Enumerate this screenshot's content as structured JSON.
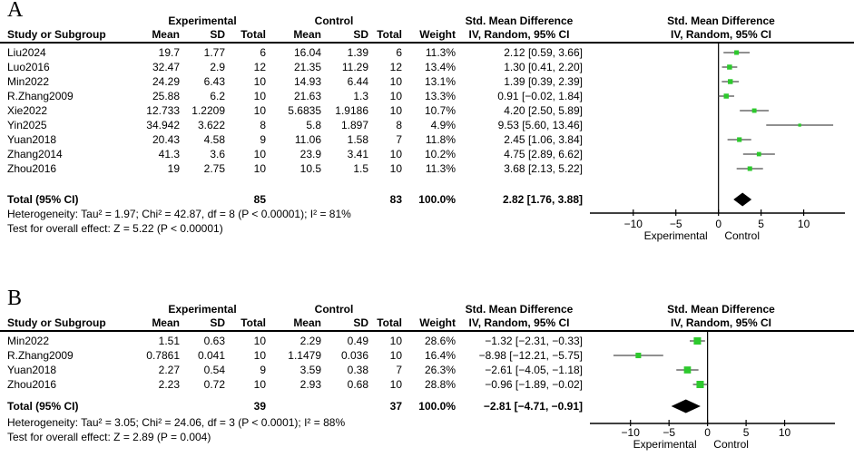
{
  "colors": {
    "marker_green": "#2DC92D",
    "ci_line": "#4d4d4d",
    "axis_black": "#000000",
    "diamond_black": "#000000"
  },
  "panels": [
    {
      "label": "A",
      "group_headers": {
        "experimental": "Experimental",
        "control": "Control",
        "smd_left": "Std. Mean Difference"
      },
      "plot_headers": {
        "line1": "Std. Mean Difference",
        "line2": "IV, Random, 95% CI"
      },
      "col_headers": {
        "study": "Study or Subgroup",
        "mean": "Mean",
        "sd": "SD",
        "total": "Total",
        "mean2": "Mean",
        "sd2": "SD",
        "total2": "Total",
        "weight": "Weight",
        "ci": "IV, Random, 95% CI"
      },
      "studies": [
        {
          "name": "Liu2024",
          "exp_mean": "19.7",
          "exp_sd": "1.77",
          "exp_total": "6",
          "ctl_mean": "16.04",
          "ctl_sd": "1.39",
          "ctl_total": "6",
          "weight": "11.3%",
          "ci_text": "2.12 [0.59, 3.66]"
        },
        {
          "name": "Luo2016",
          "exp_mean": "32.47",
          "exp_sd": "2.9",
          "exp_total": "12",
          "ctl_mean": "21.35",
          "ctl_sd": "11.29",
          "ctl_total": "12",
          "weight": "13.4%",
          "ci_text": "1.30 [0.41, 2.20]"
        },
        {
          "name": "Min2022",
          "exp_mean": "24.29",
          "exp_sd": "6.43",
          "exp_total": "10",
          "ctl_mean": "14.93",
          "ctl_sd": "6.44",
          "ctl_total": "10",
          "weight": "13.1%",
          "ci_text": "1.39 [0.39, 2.39]"
        },
        {
          "name": "R.Zhang2009",
          "exp_mean": "25.88",
          "exp_sd": "6.2",
          "exp_total": "10",
          "ctl_mean": "21.63",
          "ctl_sd": "1.3",
          "ctl_total": "10",
          "weight": "13.3%",
          "ci_text": "0.91 [−0.02, 1.84]"
        },
        {
          "name": "Xie2022",
          "exp_mean": "12.733",
          "exp_sd": "1.2209",
          "exp_total": "10",
          "ctl_mean": "5.6835",
          "ctl_sd": "1.9186",
          "ctl_total": "10",
          "weight": "10.7%",
          "ci_text": "4.20 [2.50, 5.89]"
        },
        {
          "name": "Yin2025",
          "exp_mean": "34.942",
          "exp_sd": "3.622",
          "exp_total": "8",
          "ctl_mean": "5.8",
          "ctl_sd": "1.897",
          "ctl_total": "8",
          "weight": "4.9%",
          "ci_text": "9.53 [5.60, 13.46]"
        },
        {
          "name": "Yuan2018",
          "exp_mean": "20.43",
          "exp_sd": "4.58",
          "exp_total": "9",
          "ctl_mean": "11.06",
          "ctl_sd": "1.58",
          "ctl_total": "7",
          "weight": "11.8%",
          "ci_text": "2.45 [1.06, 3.84]"
        },
        {
          "name": "Zhang2014",
          "exp_mean": "41.3",
          "exp_sd": "3.6",
          "exp_total": "10",
          "ctl_mean": "23.9",
          "ctl_sd": "3.41",
          "ctl_total": "10",
          "weight": "10.2%",
          "ci_text": "4.75 [2.89, 6.62]"
        },
        {
          "name": "Zhou2016",
          "exp_mean": "19",
          "exp_sd": "2.75",
          "exp_total": "10",
          "ctl_mean": "10.5",
          "ctl_sd": "1.5",
          "ctl_total": "10",
          "weight": "11.3%",
          "ci_text": "3.68 [2.13, 5.22]"
        }
      ],
      "total_row": {
        "label": "Total (95% CI)",
        "exp_total": "85",
        "ctl_total": "83",
        "weight": "100.0%",
        "ci_text": "2.82 [1.76, 3.88]"
      },
      "footnotes": {
        "heterogeneity": "Heterogeneity: Tau² = 1.97; Chi² = 42.87, df = 8 (P < 0.00001); I² = 81%",
        "overall": "Test for overall effect: Z = 5.22 (P < 0.00001)"
      }
    },
    {
      "label": "B",
      "group_headers": {
        "experimental": "Experimental",
        "control": "Control",
        "smd_left": "Std. Mean Difference"
      },
      "plot_headers": {
        "line1": "Std. Mean Difference",
        "line2": "IV, Random, 95% CI"
      },
      "col_headers": {
        "study": "Study or Subgroup",
        "mean": "Mean",
        "sd": "SD",
        "total": "Total",
        "mean2": "Mean",
        "sd2": "SD",
        "total2": "Total",
        "weight": "Weight",
        "ci": "IV, Random, 95% CI"
      },
      "studies": [
        {
          "name": "Min2022",
          "exp_mean": "1.51",
          "exp_sd": "0.63",
          "exp_total": "10",
          "ctl_mean": "2.29",
          "ctl_sd": "0.49",
          "ctl_total": "10",
          "weight": "28.6%",
          "ci_text": "−1.32 [−2.31, −0.33]"
        },
        {
          "name": "R.Zhang2009",
          "exp_mean": "0.7861",
          "exp_sd": "0.041",
          "exp_total": "10",
          "ctl_mean": "1.1479",
          "ctl_sd": "0.036",
          "ctl_total": "10",
          "weight": "16.4%",
          "ci_text": "−8.98 [−12.21, −5.75]"
        },
        {
          "name": "Yuan2018",
          "exp_mean": "2.27",
          "exp_sd": "0.54",
          "exp_total": "9",
          "ctl_mean": "3.59",
          "ctl_sd": "0.38",
          "ctl_total": "7",
          "weight": "26.3%",
          "ci_text": "−2.61 [−4.05, −1.18]"
        },
        {
          "name": "Zhou2016",
          "exp_mean": "2.23",
          "exp_sd": "0.72",
          "exp_total": "10",
          "ctl_mean": "2.93",
          "ctl_sd": "0.68",
          "ctl_total": "10",
          "weight": "28.8%",
          "ci_text": "−0.96 [−1.89, −0.02]"
        }
      ],
      "total_row": {
        "label": "Total (95% CI)",
        "exp_total": "39",
        "ctl_total": "37",
        "weight": "100.0%",
        "ci_text": "−2.81 [−4.71, −0.91]"
      },
      "footnotes": {
        "heterogeneity": "Heterogeneity: Tau² = 3.05; Chi² = 24.06, df = 3 (P < 0.0001); I² = 88%",
        "overall": "Test for overall effect: Z = 2.89 (P = 0.004)"
      }
    }
  ],
  "chart_data": [
    {
      "type": "scatter",
      "subtype": "forest_plot",
      "panel": "A",
      "title": "Std. Mean Difference, IV, Random, 95% CI",
      "studies": [
        {
          "name": "Liu2024",
          "smd": 2.12,
          "lo": 0.59,
          "hi": 3.66,
          "weight_pct": 11.3
        },
        {
          "name": "Luo2016",
          "smd": 1.3,
          "lo": 0.41,
          "hi": 2.2,
          "weight_pct": 13.4
        },
        {
          "name": "Min2022",
          "smd": 1.39,
          "lo": 0.39,
          "hi": 2.39,
          "weight_pct": 13.1
        },
        {
          "name": "R.Zhang2009",
          "smd": 0.91,
          "lo": -0.02,
          "hi": 1.84,
          "weight_pct": 13.3
        },
        {
          "name": "Xie2022",
          "smd": 4.2,
          "lo": 2.5,
          "hi": 5.89,
          "weight_pct": 10.7
        },
        {
          "name": "Yin2025",
          "smd": 9.53,
          "lo": 5.6,
          "hi": 13.46,
          "weight_pct": 4.9
        },
        {
          "name": "Yuan2018",
          "smd": 2.45,
          "lo": 1.06,
          "hi": 3.84,
          "weight_pct": 11.8
        },
        {
          "name": "Zhang2014",
          "smd": 4.75,
          "lo": 2.89,
          "hi": 6.62,
          "weight_pct": 10.2
        },
        {
          "name": "Zhou2016",
          "smd": 3.68,
          "lo": 2.13,
          "hi": 5.22,
          "weight_pct": 11.3
        }
      ],
      "total": {
        "smd": 2.82,
        "lo": 1.76,
        "hi": 3.88
      },
      "xlim": [
        -15.3,
        15.9
      ],
      "ticks": [
        -10,
        -5,
        0,
        5,
        10
      ],
      "tick_labels": [
        "−10",
        "−5",
        "0",
        "5",
        "10"
      ],
      "below_axis_labels": {
        "left": "Experimental",
        "right": "Control"
      }
    },
    {
      "type": "scatter",
      "subtype": "forest_plot",
      "panel": "B",
      "title": "Std. Mean Difference, IV, Random, 95% CI",
      "studies": [
        {
          "name": "Min2022",
          "smd": -1.32,
          "lo": -2.31,
          "hi": -0.33,
          "weight_pct": 28.6
        },
        {
          "name": "R.Zhang2009",
          "smd": -8.98,
          "lo": -12.21,
          "hi": -5.75,
          "weight_pct": 16.4
        },
        {
          "name": "Yuan2018",
          "smd": -2.61,
          "lo": -4.05,
          "hi": -1.18,
          "weight_pct": 26.3
        },
        {
          "name": "Zhou2016",
          "smd": -0.96,
          "lo": -1.89,
          "hi": -0.02,
          "weight_pct": 28.8
        }
      ],
      "total": {
        "smd": -2.81,
        "lo": -4.71,
        "hi": -0.91
      },
      "xlim": [
        -15.5,
        19.0
      ],
      "ticks": [
        -10,
        -5,
        0,
        5,
        10
      ],
      "tick_labels": [
        "−10",
        "−5",
        "0",
        "5",
        "10"
      ],
      "below_axis_labels": {
        "left": "Experimental",
        "right": "Control"
      }
    }
  ]
}
